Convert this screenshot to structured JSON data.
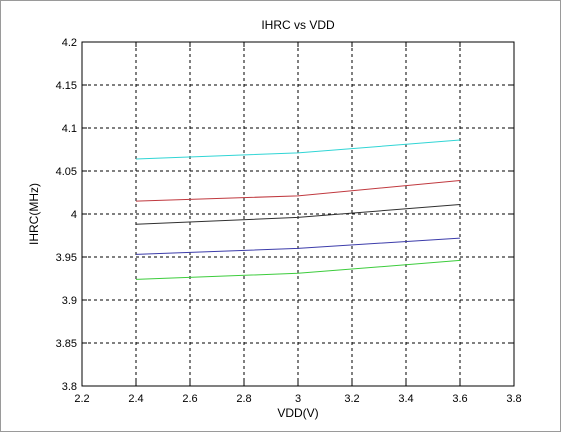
{
  "chart_data": {
    "type": "line",
    "title": "IHRC vs VDD",
    "xlabel": "VDD(V)",
    "ylabel": "IHRC(MHz)",
    "xlim": [
      2.2,
      3.8
    ],
    "ylim": [
      3.8,
      4.2
    ],
    "x_ticks": [
      "2.2",
      "2.4",
      "2.6",
      "2.8",
      "3",
      "3.2",
      "3.4",
      "3.6",
      "3.8"
    ],
    "y_ticks": [
      "3.8",
      "3.85",
      "3.9",
      "3.95",
      "4",
      "4.05",
      "4.1",
      "4.15",
      "4.2"
    ],
    "grid": true,
    "x": [
      2.4,
      3.0,
      3.6
    ],
    "series": [
      {
        "color": "#30d5d5",
        "values": [
          4.064,
          4.071,
          4.086
        ]
      },
      {
        "color": "#c0393f",
        "values": [
          4.015,
          4.021,
          4.039
        ]
      },
      {
        "color": "#303030",
        "values": [
          3.988,
          3.996,
          4.011
        ]
      },
      {
        "color": "#3c3caa",
        "values": [
          3.953,
          3.96,
          3.972
        ]
      },
      {
        "color": "#3ccc3c",
        "values": [
          3.924,
          3.931,
          3.946
        ]
      }
    ]
  }
}
